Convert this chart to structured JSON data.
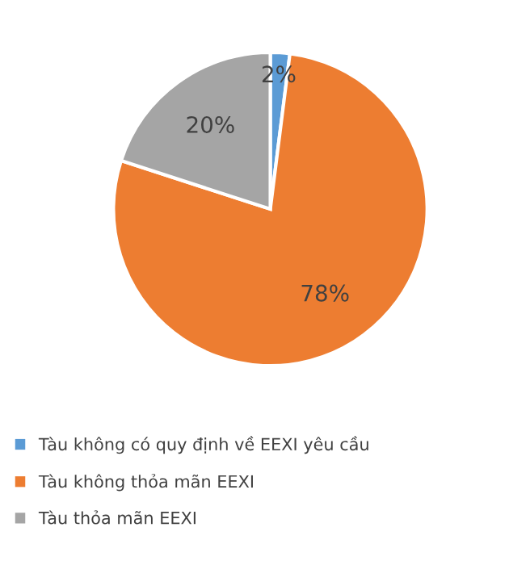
{
  "chart_data": {
    "type": "pie",
    "categories": [
      "Tàu không có quy định về EEXI yêu cầu",
      "Tàu không thỏa mãn EEXI",
      "Tàu thỏa mãn EEXI"
    ],
    "values": [
      2,
      78,
      20
    ],
    "colors": [
      "#5b9bd5",
      "#ed7d31",
      "#a5a5a5"
    ],
    "value_labels": [
      "2%",
      "78%",
      "20%"
    ],
    "legend": "bottom"
  }
}
